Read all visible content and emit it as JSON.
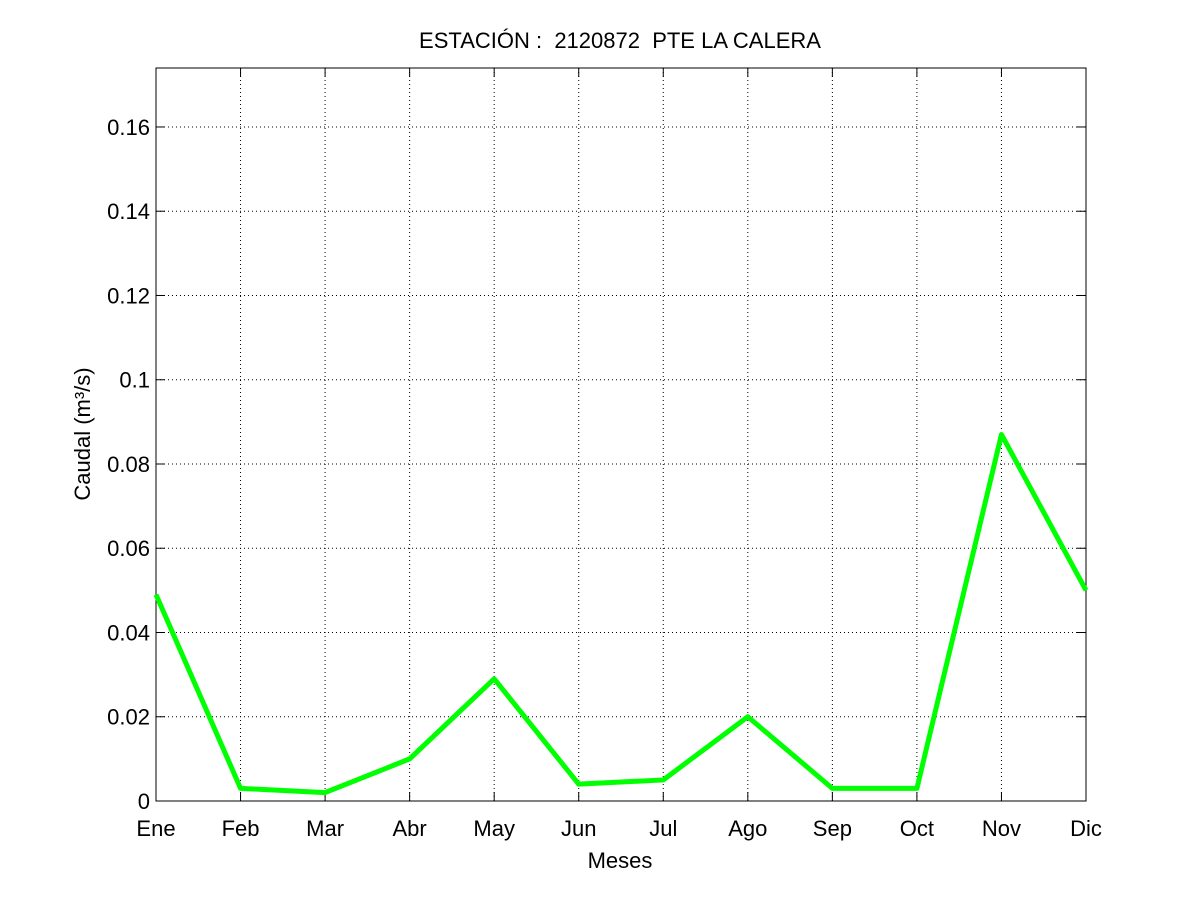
{
  "chart_data": {
    "type": "line",
    "title": "ESTACIÓN :  2120872  PTE LA CALERA",
    "xlabel": "Meses",
    "ylabel": "Caudal (m³/s)",
    "categories": [
      "Ene",
      "Feb",
      "Mar",
      "Abr",
      "May",
      "Jun",
      "Jul",
      "Ago",
      "Sep",
      "Oct",
      "Nov",
      "Dic"
    ],
    "series": [
      {
        "values": [
          0.049,
          0.003,
          0.002,
          0.01,
          0.029,
          0.004,
          0.005,
          0.02,
          0.003,
          0.003,
          0.087,
          0.05
        ],
        "color": "#00ff00"
      }
    ],
    "yticks": [
      "0",
      "0.02",
      "0.04",
      "0.06",
      "0.08",
      "0.1",
      "0.12",
      "0.14",
      "0.16"
    ],
    "ylim": [
      0,
      0.174
    ],
    "grid": true,
    "legend": "none"
  }
}
